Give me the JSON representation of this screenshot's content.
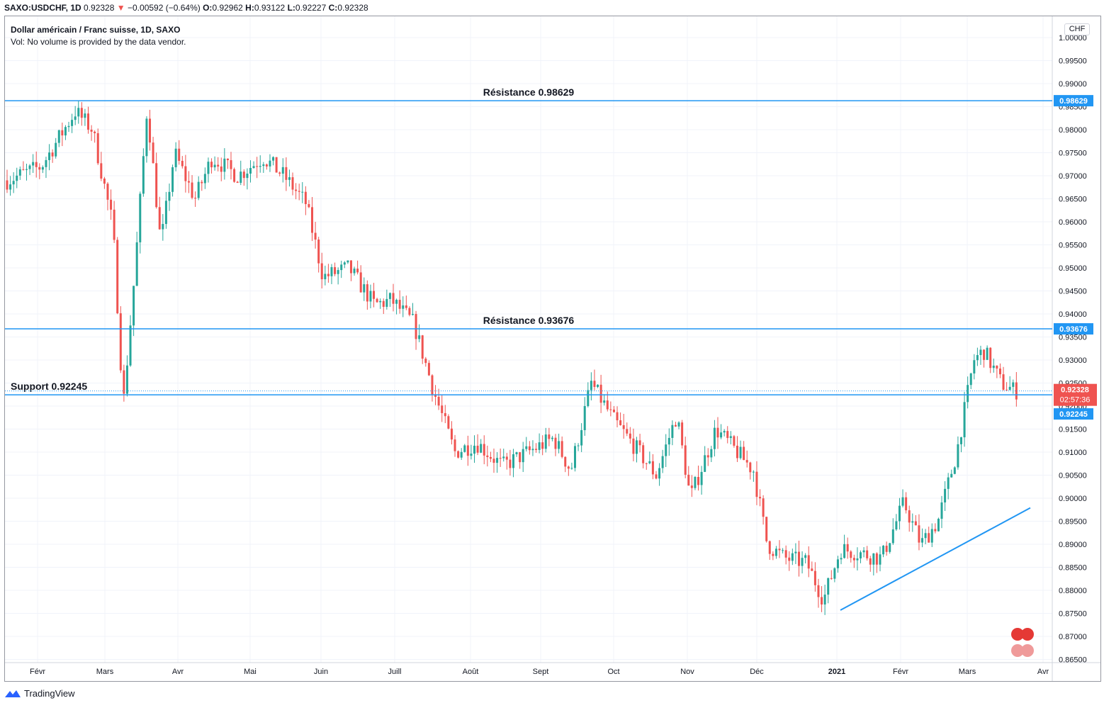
{
  "header": {
    "symbol": "SAXO:USDCHF, 1D",
    "last": "0.92328",
    "arrow": "▼",
    "change": "−0.00592 (−0.64%)",
    "o_label": "O:",
    "o_value": "0.92962",
    "h_label": "H:",
    "h_value": "0.93122",
    "l_label": "L:",
    "l_value": "0.92227",
    "c_label": "C:",
    "c_value": "0.92328"
  },
  "legend": {
    "title": "Dollar américain / Franc suisse, 1D, SAXO",
    "volume_note": "Vol: No volume is provided by the data vendor."
  },
  "currency_label": "CHF",
  "footer": {
    "brand": "TradingView"
  },
  "colors": {
    "up": "#26a69a",
    "down": "#ef5350",
    "level_line": "#2196f3",
    "grid": "#f0f3fa"
  },
  "chart_data": {
    "type": "candlestick",
    "y_ticks": [
      "1.00000",
      "0.99500",
      "0.99000",
      "0.98500",
      "0.98000",
      "0.97500",
      "0.97000",
      "0.96500",
      "0.96000",
      "0.95500",
      "0.95000",
      "0.94500",
      "0.94000",
      "0.93500",
      "0.93000",
      "0.92500",
      "0.92000",
      "0.91500",
      "0.91000",
      "0.90500",
      "0.90000",
      "0.89500",
      "0.89000",
      "0.88500",
      "0.88000",
      "0.87500",
      "0.87000",
      "0.86500"
    ],
    "x_ticks": [
      "Févr",
      "Mars",
      "Avr",
      "Mai",
      "Juin",
      "Juill",
      "Août",
      "Sept",
      "Oct",
      "Nov",
      "Déc",
      "2021",
      "Févr",
      "Mars",
      "Avr"
    ],
    "ylim": [
      0.865,
      1.0
    ],
    "levels": [
      {
        "label": "Résistance 0.98629",
        "value": 0.98629,
        "tag": "0.98629"
      },
      {
        "label": "Résistance 0.93676",
        "value": 0.93676,
        "tag": "0.93676"
      },
      {
        "label": "Support 0.92245",
        "value": 0.92245,
        "tag": "0.92245"
      }
    ],
    "last_price": {
      "value": 0.92328,
      "tag": "0.92328",
      "countdown": "02:57:36"
    },
    "trendline": {
      "start_value": 0.8757,
      "end_value": 0.8979
    },
    "series_anchors": [
      [
        0,
        0.969
      ],
      [
        20,
        0.972
      ],
      [
        40,
        0.984
      ],
      [
        50,
        0.98
      ],
      [
        62,
        0.959
      ],
      [
        68,
        0.92
      ],
      [
        75,
        0.95
      ],
      [
        82,
        0.985
      ],
      [
        90,
        0.955
      ],
      [
        98,
        0.975
      ],
      [
        110,
        0.965
      ],
      [
        120,
        0.974
      ],
      [
        135,
        0.97
      ],
      [
        150,
        0.974
      ],
      [
        162,
        0.97
      ],
      [
        175,
        0.964
      ],
      [
        185,
        0.948
      ],
      [
        200,
        0.95
      ],
      [
        215,
        0.942
      ],
      [
        225,
        0.943
      ],
      [
        238,
        0.938
      ],
      [
        250,
        0.923
      ],
      [
        262,
        0.91
      ],
      [
        275,
        0.912
      ],
      [
        290,
        0.907
      ],
      [
        305,
        0.91
      ],
      [
        320,
        0.913
      ],
      [
        330,
        0.906
      ],
      [
        342,
        0.925
      ],
      [
        355,
        0.917
      ],
      [
        370,
        0.91
      ],
      [
        380,
        0.905
      ],
      [
        392,
        0.918
      ],
      [
        400,
        0.9
      ],
      [
        415,
        0.915
      ],
      [
        425,
        0.911
      ],
      [
        437,
        0.906
      ],
      [
        445,
        0.89
      ],
      [
        455,
        0.887
      ],
      [
        468,
        0.886
      ],
      [
        478,
        0.878
      ],
      [
        488,
        0.889
      ],
      [
        500,
        0.888
      ],
      [
        512,
        0.887
      ],
      [
        525,
        0.899
      ],
      [
        535,
        0.89
      ],
      [
        545,
        0.895
      ],
      [
        556,
        0.91
      ],
      [
        566,
        0.93
      ],
      [
        572,
        0.932
      ],
      [
        582,
        0.925
      ],
      [
        590,
        0.9233
      ]
    ]
  }
}
